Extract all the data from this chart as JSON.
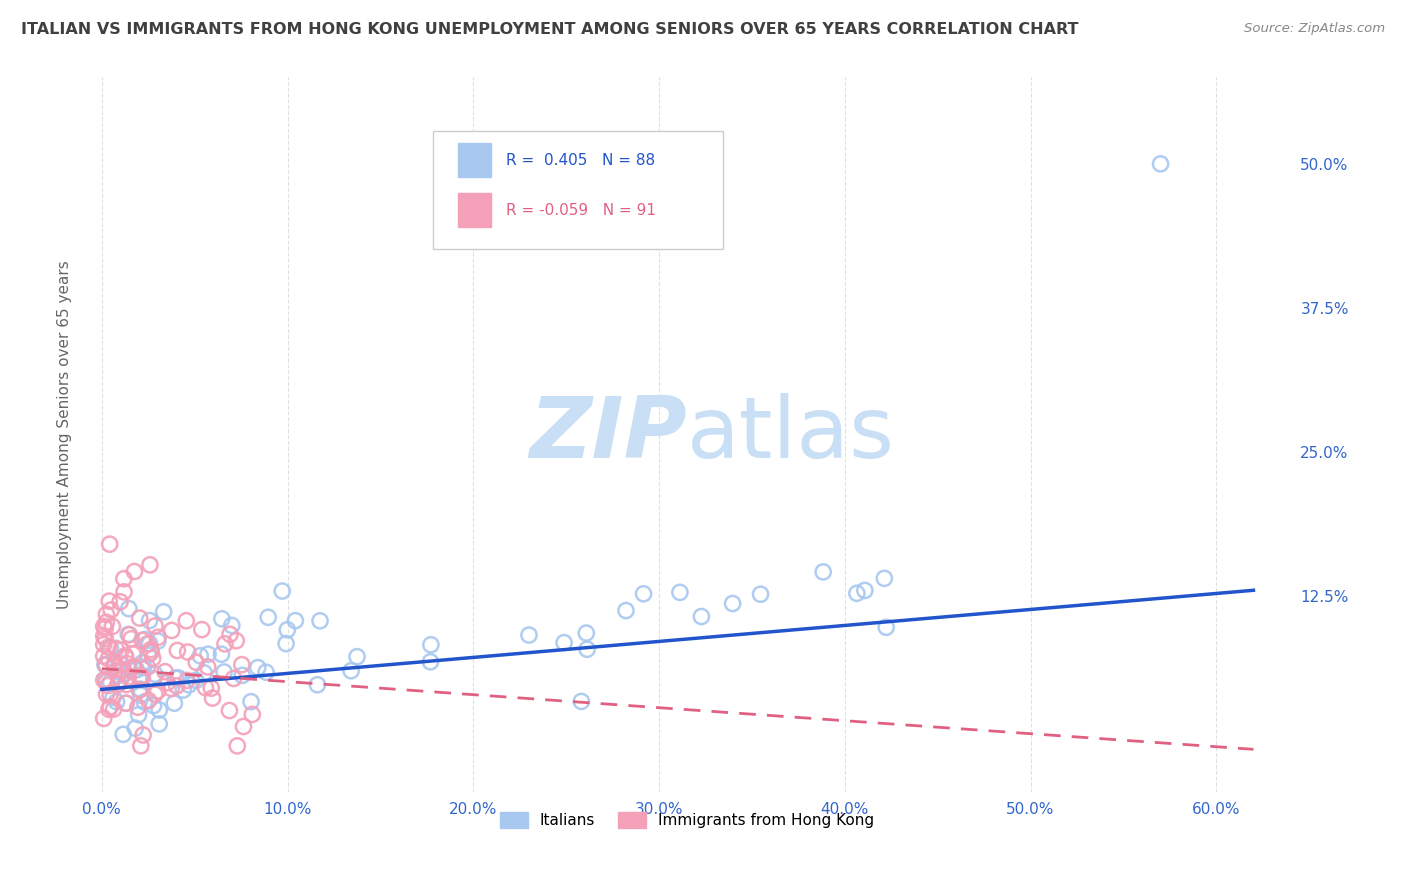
{
  "title": "ITALIAN VS IMMIGRANTS FROM HONG KONG UNEMPLOYMENT AMONG SENIORS OVER 65 YEARS CORRELATION CHART",
  "source": "Source: ZipAtlas.com",
  "xlabel_ticks": [
    "0.0%",
    "10.0%",
    "20.0%",
    "30.0%",
    "40.0%",
    "50.0%",
    "60.0%"
  ],
  "xlabel_vals": [
    0.0,
    0.1,
    0.2,
    0.3,
    0.4,
    0.5,
    0.6
  ],
  "ylabel": "Unemployment Among Seniors over 65 years",
  "right_ytick_labels": [
    "50.0%",
    "37.5%",
    "25.0%",
    "12.5%"
  ],
  "right_ytick_vals": [
    0.5,
    0.375,
    0.25,
    0.125
  ],
  "xlim": [
    -0.01,
    0.64
  ],
  "ylim": [
    -0.045,
    0.575
  ],
  "italian_R": 0.405,
  "italian_N": 88,
  "hk_R": -0.059,
  "hk_N": 91,
  "italian_color": "#a8c8f0",
  "hk_color": "#f4a0b8",
  "italian_line_color": "#2255cc",
  "hk_line_color": "#e06080",
  "legend_R_color": "#2255cc",
  "legend_hk_R_color": "#e06080",
  "watermark_zip": "ZIP",
  "watermark_atlas": "atlas",
  "watermark_color_zip": "#c8dff5",
  "watermark_color_atlas": "#c8dff5",
  "background_color": "#ffffff",
  "grid_color": "#cccccc",
  "title_color": "#404040",
  "it_line_x0": 0.0,
  "it_line_y0": 0.044,
  "it_line_x1": 0.62,
  "it_line_y1": 0.13,
  "hk_line_x0": 0.0,
  "hk_line_y0": 0.062,
  "hk_line_x1": 0.62,
  "hk_line_y1": -0.008
}
